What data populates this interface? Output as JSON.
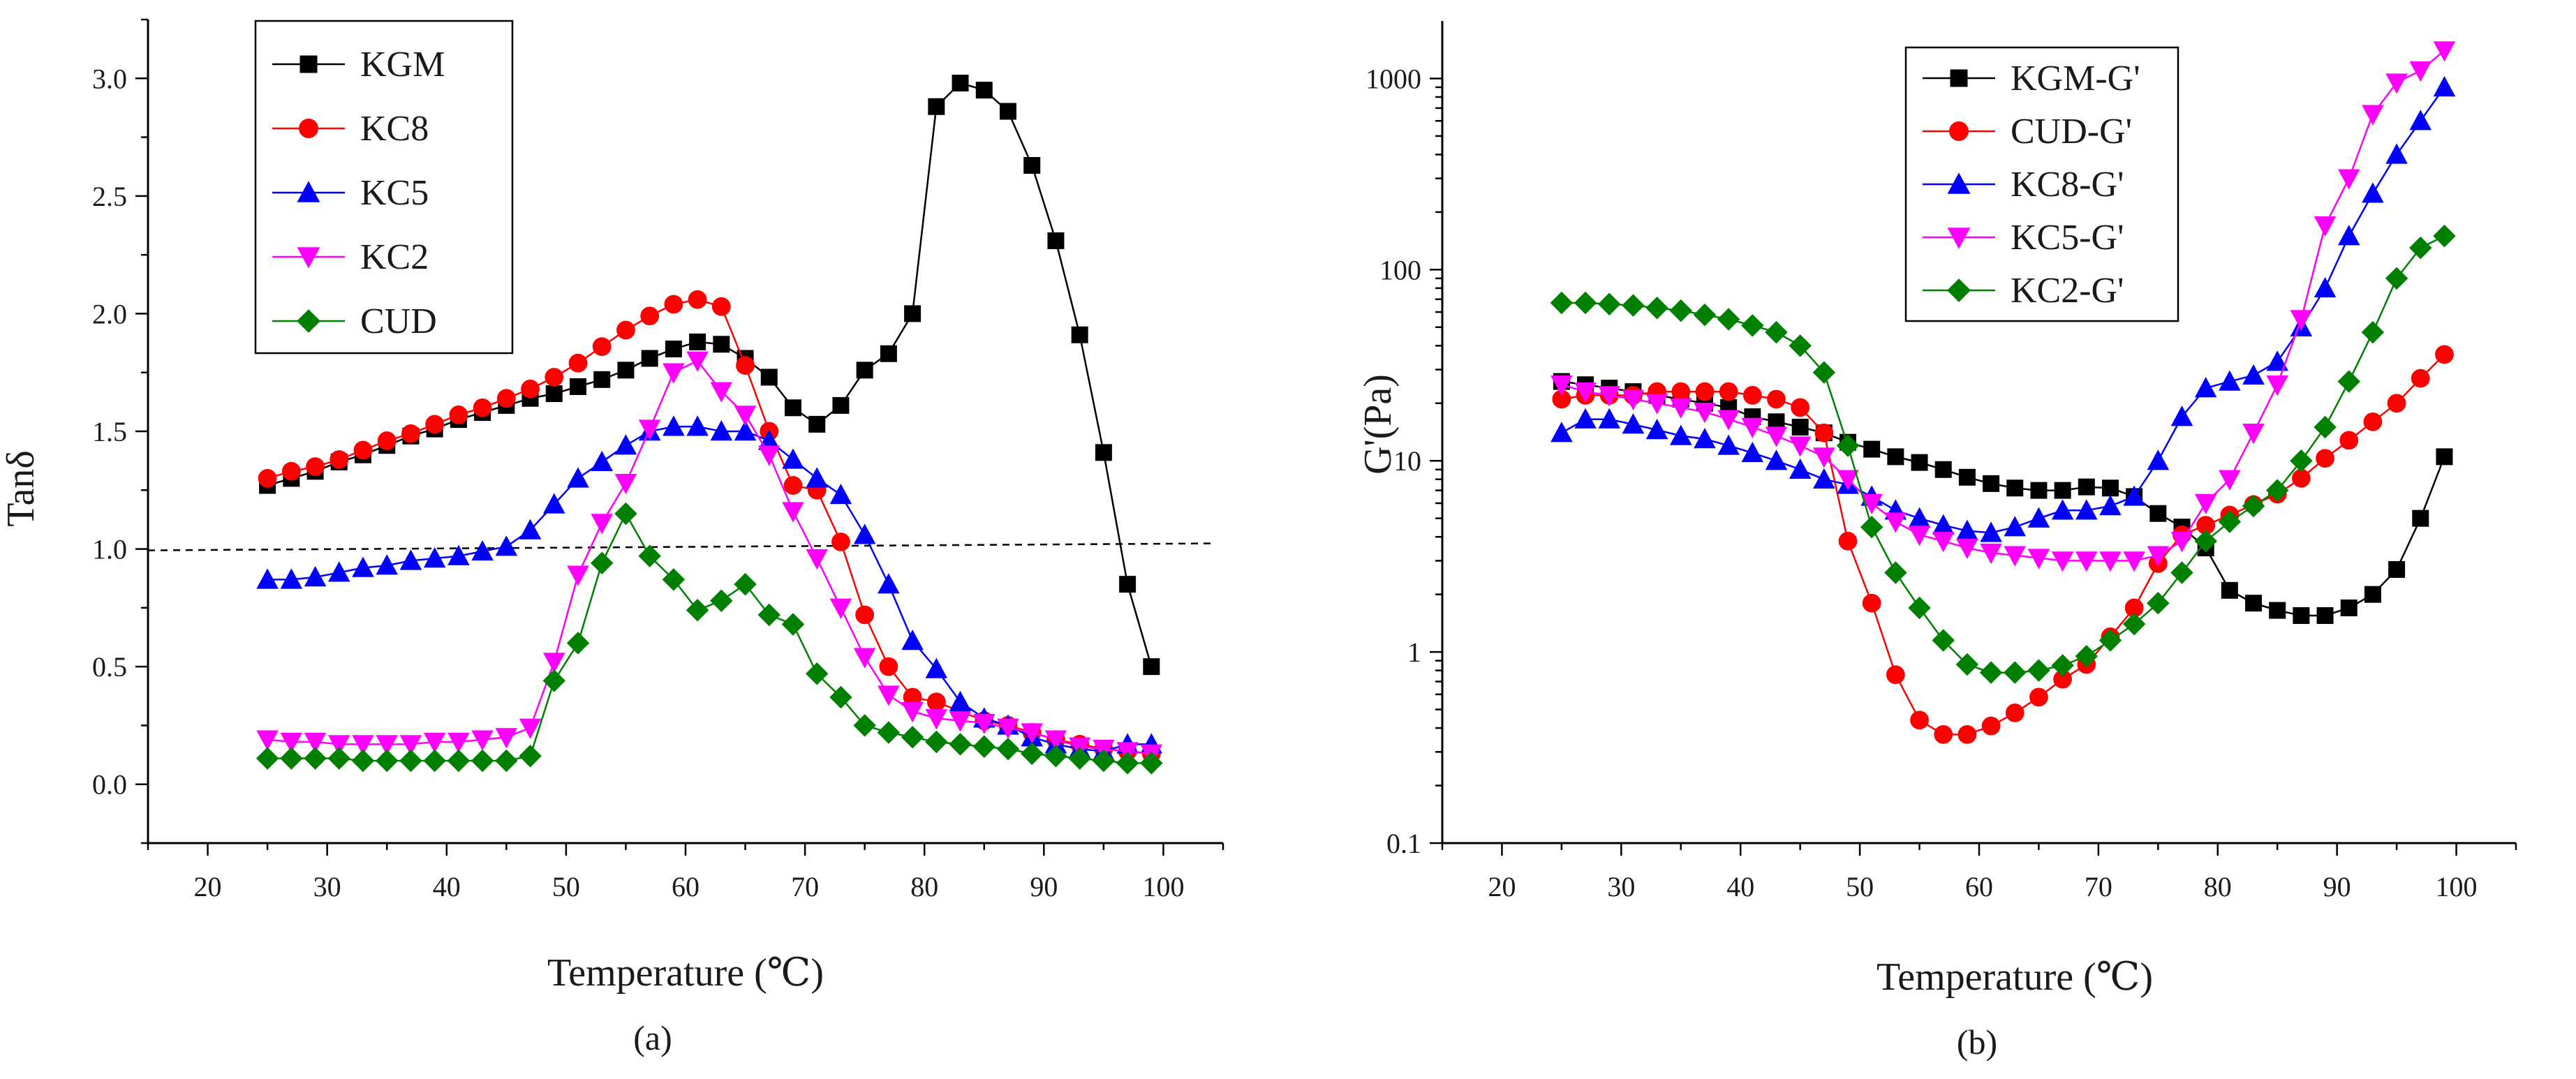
{
  "chart_data": [
    {
      "type": "line",
      "panel_label": "(a)",
      "title": "",
      "xlabel": "Temperature (℃)",
      "ylabel": "Tanδ",
      "xlim": [
        15,
        105
      ],
      "ylim": [
        -0.25,
        3.25
      ],
      "x_ticks": [
        20,
        30,
        40,
        50,
        60,
        70,
        80,
        90,
        100
      ],
      "y_ticks": [
        0.0,
        0.5,
        1.0,
        1.5,
        2.0,
        2.5,
        3.0
      ],
      "y_tick_labels": [
        "0.0",
        "0.5",
        "1.0",
        "1.5",
        "2.0",
        "2.5",
        "3.0"
      ],
      "grid": false,
      "legend_position": "top-left",
      "reference_line": {
        "y": 1.0,
        "style": "dashed"
      },
      "series": [
        {
          "name": "KGM",
          "color": "#000000",
          "marker": "square",
          "x": [
            25,
            27,
            29,
            31,
            33,
            35,
            37,
            39,
            41,
            43,
            45,
            47,
            49,
            51,
            53,
            55,
            57,
            59,
            61,
            63,
            65,
            67,
            69,
            71,
            73,
            75,
            77,
            79,
            81,
            83,
            85,
            87,
            89,
            91,
            93,
            95,
            97,
            99
          ],
          "y": [
            1.27,
            1.3,
            1.33,
            1.37,
            1.4,
            1.44,
            1.48,
            1.51,
            1.55,
            1.58,
            1.61,
            1.64,
            1.66,
            1.69,
            1.72,
            1.76,
            1.81,
            1.85,
            1.88,
            1.87,
            1.81,
            1.73,
            1.6,
            1.53,
            1.61,
            1.76,
            1.83,
            2.0,
            2.88,
            2.98,
            2.95,
            2.86,
            2.63,
            2.31,
            1.91,
            1.41,
            0.85,
            0.5
          ]
        },
        {
          "name": "KC8",
          "color": "#ff0000",
          "marker": "circle",
          "x": [
            25,
            27,
            29,
            31,
            33,
            35,
            37,
            39,
            41,
            43,
            45,
            47,
            49,
            51,
            53,
            55,
            57,
            59,
            61,
            63,
            65,
            67,
            69,
            71,
            73,
            75,
            77,
            79,
            81,
            83,
            85,
            87,
            89,
            91,
            93,
            95,
            97,
            99
          ],
          "y": [
            1.3,
            1.33,
            1.35,
            1.38,
            1.42,
            1.46,
            1.49,
            1.53,
            1.57,
            1.6,
            1.64,
            1.68,
            1.73,
            1.79,
            1.86,
            1.93,
            1.99,
            2.04,
            2.06,
            2.03,
            1.78,
            1.5,
            1.27,
            1.25,
            1.03,
            0.72,
            0.5,
            0.37,
            0.35,
            0.31,
            0.27,
            0.25,
            0.22,
            0.19,
            0.17,
            0.15,
            0.14,
            0.13
          ]
        },
        {
          "name": "KC5",
          "color": "#0000ff",
          "marker": "triangle-up",
          "x": [
            25,
            27,
            29,
            31,
            33,
            35,
            37,
            39,
            41,
            43,
            45,
            47,
            49,
            51,
            53,
            55,
            57,
            59,
            61,
            63,
            65,
            67,
            69,
            71,
            73,
            75,
            77,
            79,
            81,
            83,
            85,
            87,
            89,
            91,
            93,
            95,
            97,
            99
          ],
          "y": [
            0.87,
            0.87,
            0.88,
            0.9,
            0.92,
            0.93,
            0.95,
            0.96,
            0.97,
            0.99,
            1.01,
            1.08,
            1.19,
            1.3,
            1.37,
            1.44,
            1.5,
            1.52,
            1.52,
            1.5,
            1.5,
            1.46,
            1.38,
            1.3,
            1.23,
            1.06,
            0.85,
            0.61,
            0.49,
            0.35,
            0.28,
            0.25,
            0.2,
            0.17,
            0.15,
            0.14,
            0.17,
            0.17
          ]
        },
        {
          "name": "KC2",
          "color": "#ff00ff",
          "marker": "triangle-down",
          "x": [
            25,
            27,
            29,
            31,
            33,
            35,
            37,
            39,
            41,
            43,
            45,
            47,
            49,
            51,
            53,
            55,
            57,
            59,
            61,
            63,
            65,
            67,
            69,
            71,
            73,
            75,
            77,
            79,
            81,
            83,
            85,
            87,
            89,
            91,
            93,
            95,
            97,
            99
          ],
          "y": [
            0.19,
            0.18,
            0.18,
            0.17,
            0.17,
            0.17,
            0.17,
            0.18,
            0.18,
            0.19,
            0.2,
            0.24,
            0.52,
            0.89,
            1.11,
            1.28,
            1.51,
            1.75,
            1.8,
            1.67,
            1.57,
            1.4,
            1.16,
            0.96,
            0.75,
            0.54,
            0.38,
            0.31,
            0.28,
            0.27,
            0.26,
            0.24,
            0.22,
            0.19,
            0.16,
            0.15,
            0.14,
            0.13
          ]
        },
        {
          "name": "CUD",
          "color": "#008000",
          "marker": "diamond",
          "x": [
            25,
            27,
            29,
            31,
            33,
            35,
            37,
            39,
            41,
            43,
            45,
            47,
            49,
            51,
            53,
            55,
            57,
            59,
            61,
            63,
            65,
            67,
            69,
            71,
            73,
            75,
            77,
            79,
            81,
            83,
            85,
            87,
            89,
            91,
            93,
            95,
            97,
            99
          ],
          "y": [
            0.11,
            0.11,
            0.11,
            0.11,
            0.1,
            0.1,
            0.1,
            0.1,
            0.1,
            0.1,
            0.1,
            0.12,
            0.44,
            0.6,
            0.94,
            1.15,
            0.97,
            0.87,
            0.74,
            0.78,
            0.85,
            0.72,
            0.68,
            0.47,
            0.37,
            0.25,
            0.22,
            0.2,
            0.18,
            0.17,
            0.16,
            0.15,
            0.13,
            0.12,
            0.11,
            0.1,
            0.09,
            0.09
          ]
        }
      ]
    },
    {
      "type": "line",
      "panel_label": "(b)",
      "title": "",
      "xlabel": "Temperature (℃)",
      "ylabel": "G'(Pa)",
      "xlim": [
        15,
        105
      ],
      "ylim": [
        0.1,
        2000
      ],
      "y_scale": "log",
      "x_ticks": [
        20,
        30,
        40,
        50,
        60,
        70,
        80,
        90,
        100
      ],
      "y_ticks": [
        0.1,
        1,
        10,
        100,
        1000
      ],
      "y_tick_labels": [
        "0.1",
        "1",
        "10",
        "100",
        "1000"
      ],
      "grid": false,
      "legend_position": "top-center",
      "series": [
        {
          "name": "KGM-G'",
          "color": "#000000",
          "marker": "square",
          "x": [
            25,
            27,
            29,
            31,
            33,
            35,
            37,
            39,
            41,
            43,
            45,
            47,
            49,
            51,
            53,
            55,
            57,
            59,
            61,
            63,
            65,
            67,
            69,
            71,
            73,
            75,
            77,
            79,
            81,
            83,
            85,
            87,
            89,
            91,
            93,
            95,
            97,
            99
          ],
          "y": [
            26,
            25,
            24,
            23,
            22,
            21,
            20,
            19,
            17,
            16,
            15,
            14,
            12.5,
            11.5,
            10.5,
            9.8,
            9,
            8.2,
            7.6,
            7.2,
            7,
            7,
            7.3,
            7.2,
            6.5,
            5.3,
            4.5,
            3.5,
            2.1,
            1.8,
            1.65,
            1.55,
            1.55,
            1.7,
            2,
            2.7,
            5,
            10.5
          ]
        },
        {
          "name": "CUD-G'",
          "color": "#ff0000",
          "marker": "circle",
          "x": [
            25,
            27,
            29,
            31,
            33,
            35,
            37,
            39,
            41,
            43,
            45,
            47,
            49,
            51,
            53,
            55,
            57,
            59,
            61,
            63,
            65,
            67,
            69,
            71,
            73,
            75,
            77,
            79,
            81,
            83,
            85,
            87,
            89,
            91,
            93,
            95,
            97,
            99
          ],
          "y": [
            21,
            22,
            22,
            22,
            23,
            23,
            23,
            23,
            22,
            21,
            19,
            14,
            3.8,
            1.8,
            0.76,
            0.44,
            0.37,
            0.37,
            0.41,
            0.48,
            0.58,
            0.72,
            0.86,
            1.2,
            1.7,
            2.9,
            4.1,
            4.6,
            5.2,
            5.9,
            6.7,
            8.1,
            10.3,
            12.8,
            16,
            20,
            27,
            36
          ]
        },
        {
          "name": "KC8-G'",
          "color": "#0000ff",
          "marker": "triangle-up",
          "x": [
            25,
            27,
            29,
            31,
            33,
            35,
            37,
            39,
            41,
            43,
            45,
            47,
            49,
            51,
            53,
            55,
            57,
            59,
            61,
            63,
            65,
            67,
            69,
            71,
            73,
            75,
            77,
            79,
            81,
            83,
            85,
            87,
            89,
            91,
            93,
            95,
            97,
            99
          ],
          "y": [
            14,
            16.5,
            16.5,
            15.5,
            14.5,
            13.5,
            13,
            12,
            11,
            10,
            9,
            8,
            7.5,
            6.5,
            5.5,
            5,
            4.6,
            4.3,
            4.2,
            4.5,
            5,
            5.5,
            5.5,
            5.8,
            6.5,
            10,
            17,
            24,
            26,
            28,
            33,
            50,
            80,
            150,
            250,
            400,
            600,
            900
          ]
        },
        {
          "name": "KC5-G'",
          "color": "#ff00ff",
          "marker": "triangle-down",
          "x": [
            25,
            27,
            29,
            31,
            33,
            35,
            37,
            39,
            41,
            43,
            45,
            47,
            49,
            51,
            53,
            55,
            57,
            59,
            61,
            63,
            65,
            67,
            69,
            71,
            73,
            75,
            77,
            79,
            81,
            83,
            85,
            87,
            89,
            91,
            93,
            95,
            97,
            99
          ],
          "y": [
            25,
            23,
            22,
            21,
            20,
            19,
            18,
            16.5,
            15,
            13.5,
            12,
            10.5,
            8,
            6,
            4.8,
            4.1,
            3.8,
            3.5,
            3.3,
            3.2,
            3.1,
            3,
            3,
            3,
            3,
            3.2,
            3.8,
            6,
            8,
            14,
            25,
            55,
            170,
            300,
            650,
            950,
            1100,
            1400
          ]
        },
        {
          "name": "KC2-G'",
          "color": "#008000",
          "marker": "diamond",
          "x": [
            25,
            27,
            29,
            31,
            33,
            35,
            37,
            39,
            41,
            43,
            45,
            47,
            49,
            51,
            53,
            55,
            57,
            59,
            61,
            63,
            65,
            67,
            69,
            71,
            73,
            75,
            77,
            79,
            81,
            83,
            85,
            87,
            89,
            91,
            93,
            95,
            97,
            99
          ],
          "y": [
            67,
            67,
            66,
            65,
            63,
            61,
            58,
            55,
            51,
            47,
            40,
            29,
            12,
            4.5,
            2.6,
            1.7,
            1.15,
            0.86,
            0.78,
            0.78,
            0.8,
            0.85,
            0.95,
            1.15,
            1.4,
            1.8,
            2.6,
            3.8,
            4.8,
            5.8,
            7,
            10,
            15,
            26,
            47,
            90,
            130,
            150
          ]
        }
      ]
    }
  ]
}
